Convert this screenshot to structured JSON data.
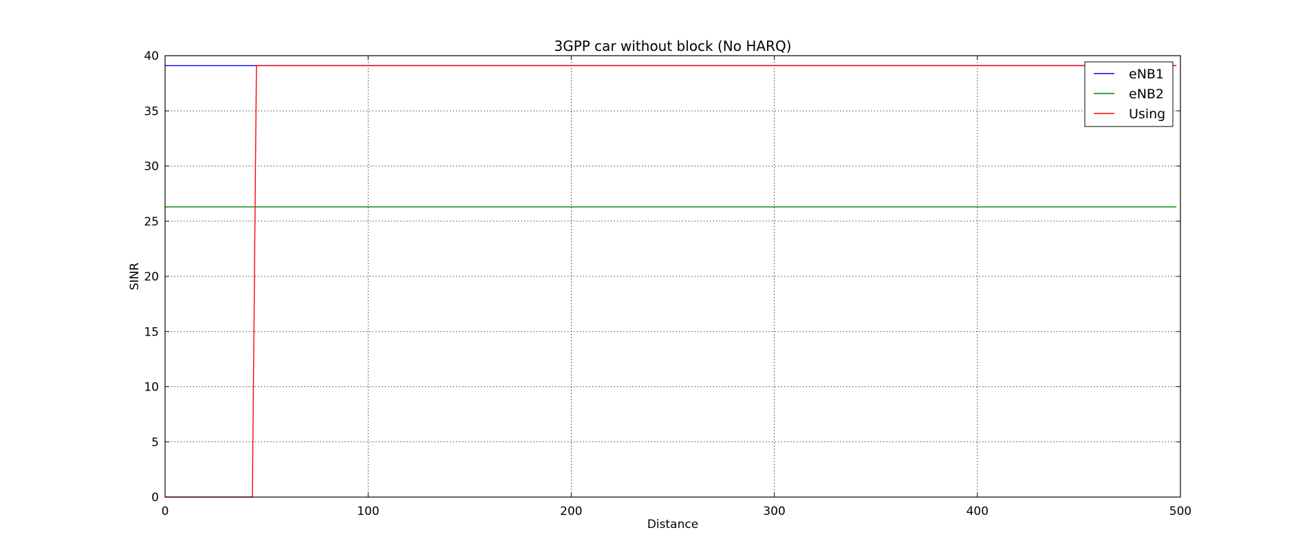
{
  "chart_data": {
    "type": "line",
    "title": "3GPP car without block (No HARQ)",
    "xlabel": "Distance",
    "ylabel": "SINR",
    "xlim": [
      0,
      500
    ],
    "ylim": [
      0,
      40
    ],
    "xticks": [
      0,
      100,
      200,
      300,
      400,
      500
    ],
    "yticks": [
      0,
      5,
      10,
      15,
      20,
      25,
      30,
      35,
      40
    ],
    "grid": true,
    "legend": "top-right",
    "series": [
      {
        "name": "eNB1",
        "color": "#0000ff",
        "x": [
          0,
          498
        ],
        "y": [
          39.1,
          39.1
        ]
      },
      {
        "name": "eNB2",
        "color": "#008000",
        "x": [
          0,
          498
        ],
        "y": [
          26.3,
          26.3
        ]
      },
      {
        "name": "Using",
        "color": "#ff0000",
        "x": [
          0,
          43,
          45,
          498
        ],
        "y": [
          0,
          0,
          39.1,
          39.1
        ]
      }
    ]
  }
}
